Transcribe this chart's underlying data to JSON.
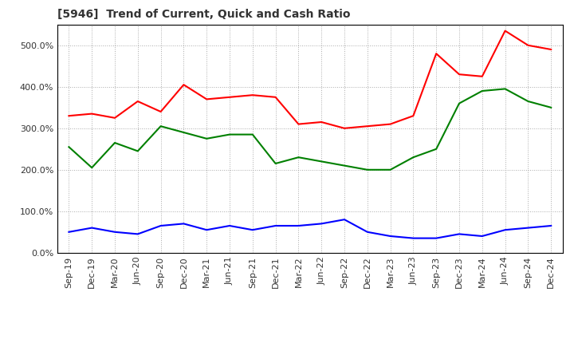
{
  "title": "[5946]  Trend of Current, Quick and Cash Ratio",
  "x_labels": [
    "Sep-19",
    "Dec-19",
    "Mar-20",
    "Jun-20",
    "Sep-20",
    "Dec-20",
    "Mar-21",
    "Jun-21",
    "Sep-21",
    "Dec-21",
    "Mar-22",
    "Jun-22",
    "Sep-22",
    "Dec-22",
    "Mar-23",
    "Jun-23",
    "Sep-23",
    "Dec-23",
    "Mar-24",
    "Jun-24",
    "Sep-24",
    "Dec-24"
  ],
  "current_ratio": [
    330,
    335,
    325,
    365,
    340,
    405,
    370,
    375,
    380,
    375,
    310,
    315,
    300,
    305,
    310,
    330,
    480,
    430,
    425,
    535,
    500,
    490
  ],
  "quick_ratio": [
    255,
    205,
    265,
    245,
    305,
    290,
    275,
    285,
    285,
    215,
    230,
    220,
    210,
    200,
    200,
    230,
    250,
    360,
    390,
    395,
    365,
    350
  ],
  "cash_ratio": [
    50,
    60,
    50,
    45,
    65,
    70,
    55,
    65,
    55,
    65,
    65,
    70,
    80,
    50,
    40,
    35,
    35,
    45,
    40,
    55,
    60,
    65
  ],
  "current_color": "#FF0000",
  "quick_color": "#008000",
  "cash_color": "#0000FF",
  "ylim": [
    0,
    550
  ],
  "yticks": [
    0,
    100,
    200,
    300,
    400,
    500
  ],
  "background_color": "#ffffff",
  "plot_bg_color": "#ffffff"
}
